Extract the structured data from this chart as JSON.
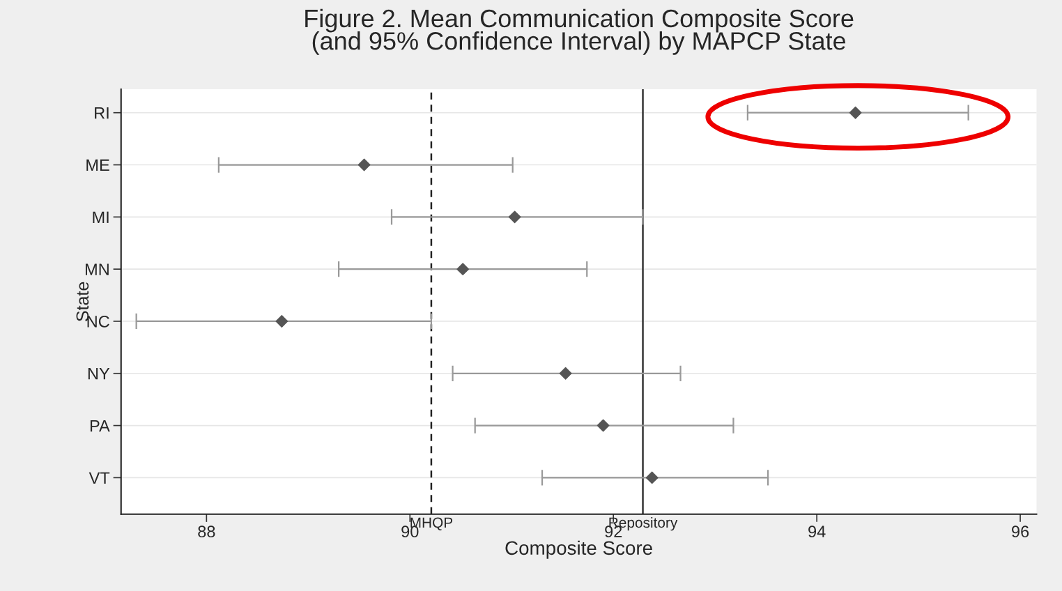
{
  "chart_data": {
    "type": "scatter",
    "orientation": "horizontal",
    "title": "Figure 2. Mean Communication Composite Score\n(and 95% Confidence Interval) by MAPCP State",
    "xlabel": "Composite Score",
    "ylabel": "State",
    "categories": [
      "RI",
      "ME",
      "MI",
      "MN",
      "NC",
      "NY",
      "PA",
      "VT"
    ],
    "series": [
      {
        "color": "#555555",
        "values": [
          94.38,
          89.55,
          91.03,
          90.52,
          88.74,
          91.53,
          91.9,
          92.38
        ],
        "errors": [
          [
            93.32,
            95.49
          ],
          [
            88.12,
            91.01
          ],
          [
            89.82,
            92.29
          ],
          [
            89.3,
            91.74
          ],
          [
            87.31,
            90.21
          ],
          [
            90.42,
            92.66
          ],
          [
            90.64,
            93.18
          ],
          [
            91.3,
            93.52
          ]
        ]
      }
    ],
    "xlim": [
      87.16,
      96.16
    ],
    "xticks": [
      88,
      90,
      92,
      94,
      96
    ],
    "ref_lines": [
      {
        "axis": "x",
        "value": 90.21,
        "label": "MHQP",
        "color": "#222222",
        "line_style": "dashed"
      },
      {
        "axis": "x",
        "value": 92.29,
        "label": "Repository",
        "color": "#333333",
        "line_style": "solid"
      }
    ],
    "marker": "diamond",
    "grid": "y",
    "legend": false
  }
}
